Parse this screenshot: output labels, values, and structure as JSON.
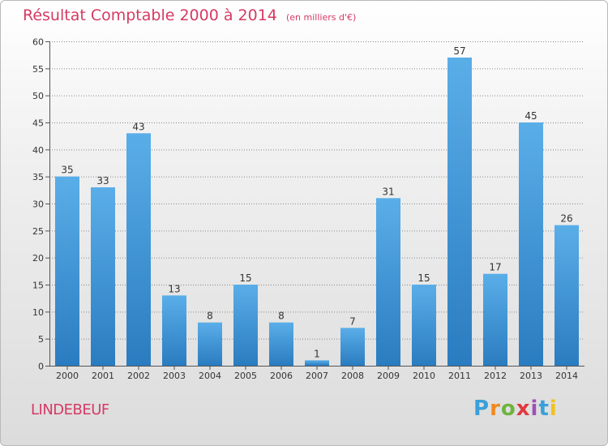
{
  "header": {
    "title": "Résultat Comptable 2000 à 2014",
    "unit": "(en milliers d'€)"
  },
  "footer": {
    "commune": "LINDEBEUF",
    "logo": [
      "P",
      "r",
      "o",
      "x",
      "i",
      "t",
      "i"
    ]
  },
  "colors": {
    "title": "#d63a63",
    "bar_top": "#5aaee8",
    "bar_bottom": "#2a7cc0",
    "grid": "#8a8a8a"
  },
  "chart_data": {
    "type": "bar",
    "categories": [
      "2000",
      "2001",
      "2002",
      "2003",
      "2004",
      "2005",
      "2006",
      "2007",
      "2008",
      "2009",
      "2010",
      "2011",
      "2012",
      "2013",
      "2014"
    ],
    "values": [
      35,
      33,
      43,
      13,
      8,
      15,
      8,
      1,
      7,
      31,
      15,
      57,
      17,
      45,
      26
    ],
    "ylim": [
      0,
      60
    ],
    "yticks": [
      0,
      5,
      10,
      15,
      20,
      25,
      30,
      35,
      40,
      45,
      50,
      55,
      60
    ],
    "grid": true,
    "data_labels": true
  }
}
